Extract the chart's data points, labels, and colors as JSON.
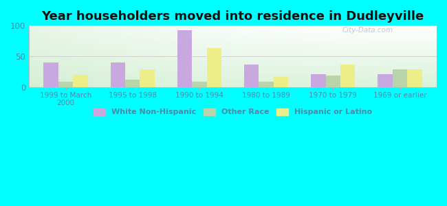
{
  "title": "Year householders moved into residence in Dudleyville",
  "categories": [
    "1999 to March\n2000",
    "1995 to 1998",
    "1990 to 1994",
    "1980 to 1989",
    "1970 to 1979",
    "1969 or earlier"
  ],
  "series": {
    "White Non-Hispanic": [
      40,
      40,
      93,
      36,
      21,
      21
    ],
    "Other Race": [
      9,
      12,
      9,
      8,
      19,
      29
    ],
    "Hispanic or Latino": [
      20,
      29,
      63,
      16,
      36,
      29
    ]
  },
  "colors": {
    "White Non-Hispanic": "#c9a8e0",
    "Other Race": "#b8d4a8",
    "Hispanic or Latino": "#eeee88"
  },
  "ylim": [
    0,
    100
  ],
  "yticks": [
    0,
    50,
    100
  ],
  "background_outer": "#00ffff",
  "legend_labels": [
    "White Non-Hispanic",
    "Other Race",
    "Hispanic or Latino"
  ],
  "watermark": "City-Data.com",
  "title_fontsize": 13,
  "bar_width": 0.22,
  "tick_color": "#4a8aaa",
  "label_color": "#4a8aaa"
}
